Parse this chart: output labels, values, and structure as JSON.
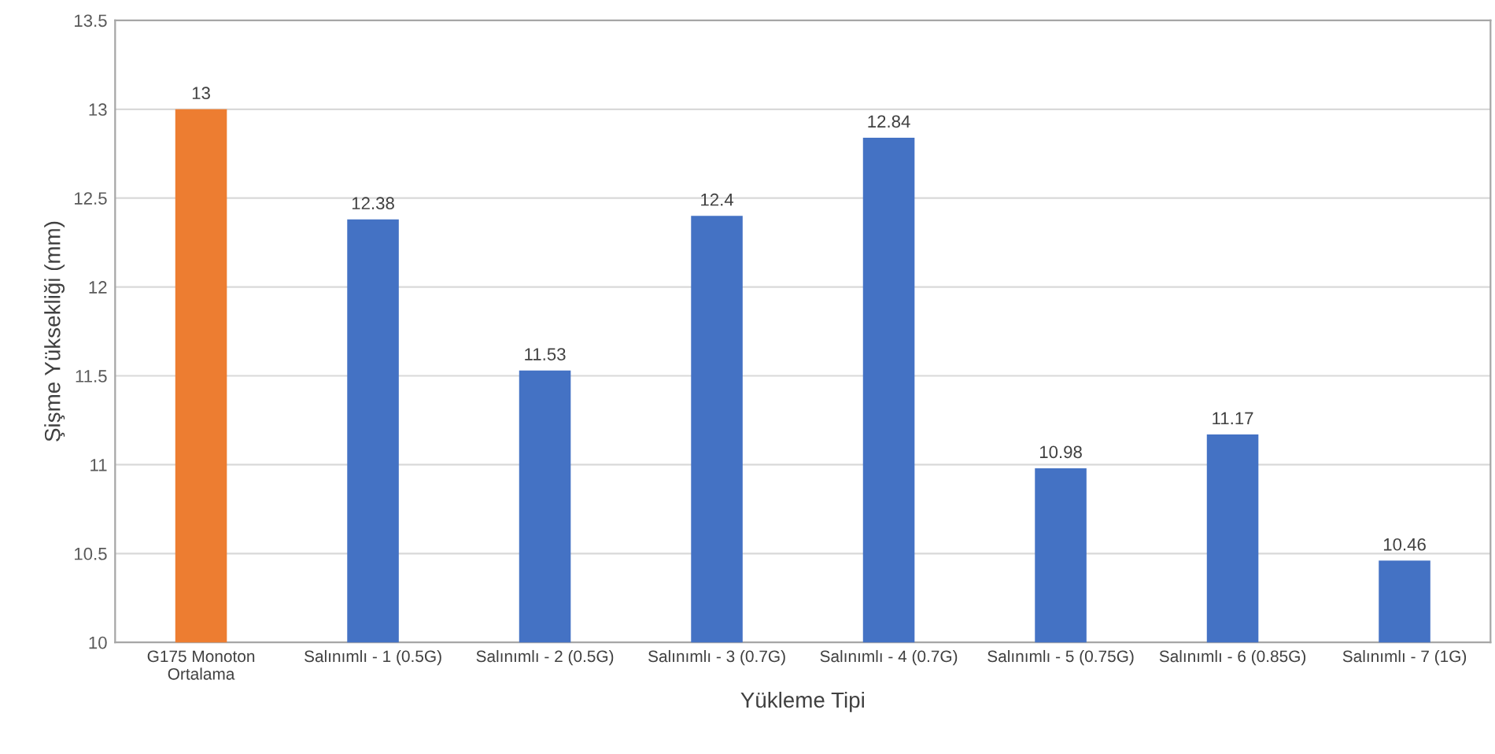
{
  "chart_data": {
    "type": "bar",
    "xlabel": "Yükleme Tipi",
    "ylabel": "Şişme Yüksekliği (mm)",
    "categories": [
      "G175 Monoton\nOrtalama",
      "Salınımlı - 1 (0.5G)",
      "Salınımlı - 2 (0.5G)",
      "Salınımlı - 3 (0.7G)",
      "Salınımlı - 4 (0.7G)",
      "Salınımlı - 5 (0.75G)",
      "Salınımlı - 6 (0.85G)",
      "Salınımlı - 7 (1G)"
    ],
    "values": [
      13,
      12.38,
      11.53,
      12.4,
      12.84,
      10.98,
      11.17,
      10.46
    ],
    "colors": [
      "#ed7d31",
      "#4472c4",
      "#4472c4",
      "#4472c4",
      "#4472c4",
      "#4472c4",
      "#4472c4",
      "#4472c4"
    ],
    "ylim": [
      10,
      13.5
    ],
    "yticks": [
      10,
      10.5,
      11,
      11.5,
      12,
      12.5,
      13,
      13.5
    ],
    "grid": "y",
    "data_labels": true
  }
}
